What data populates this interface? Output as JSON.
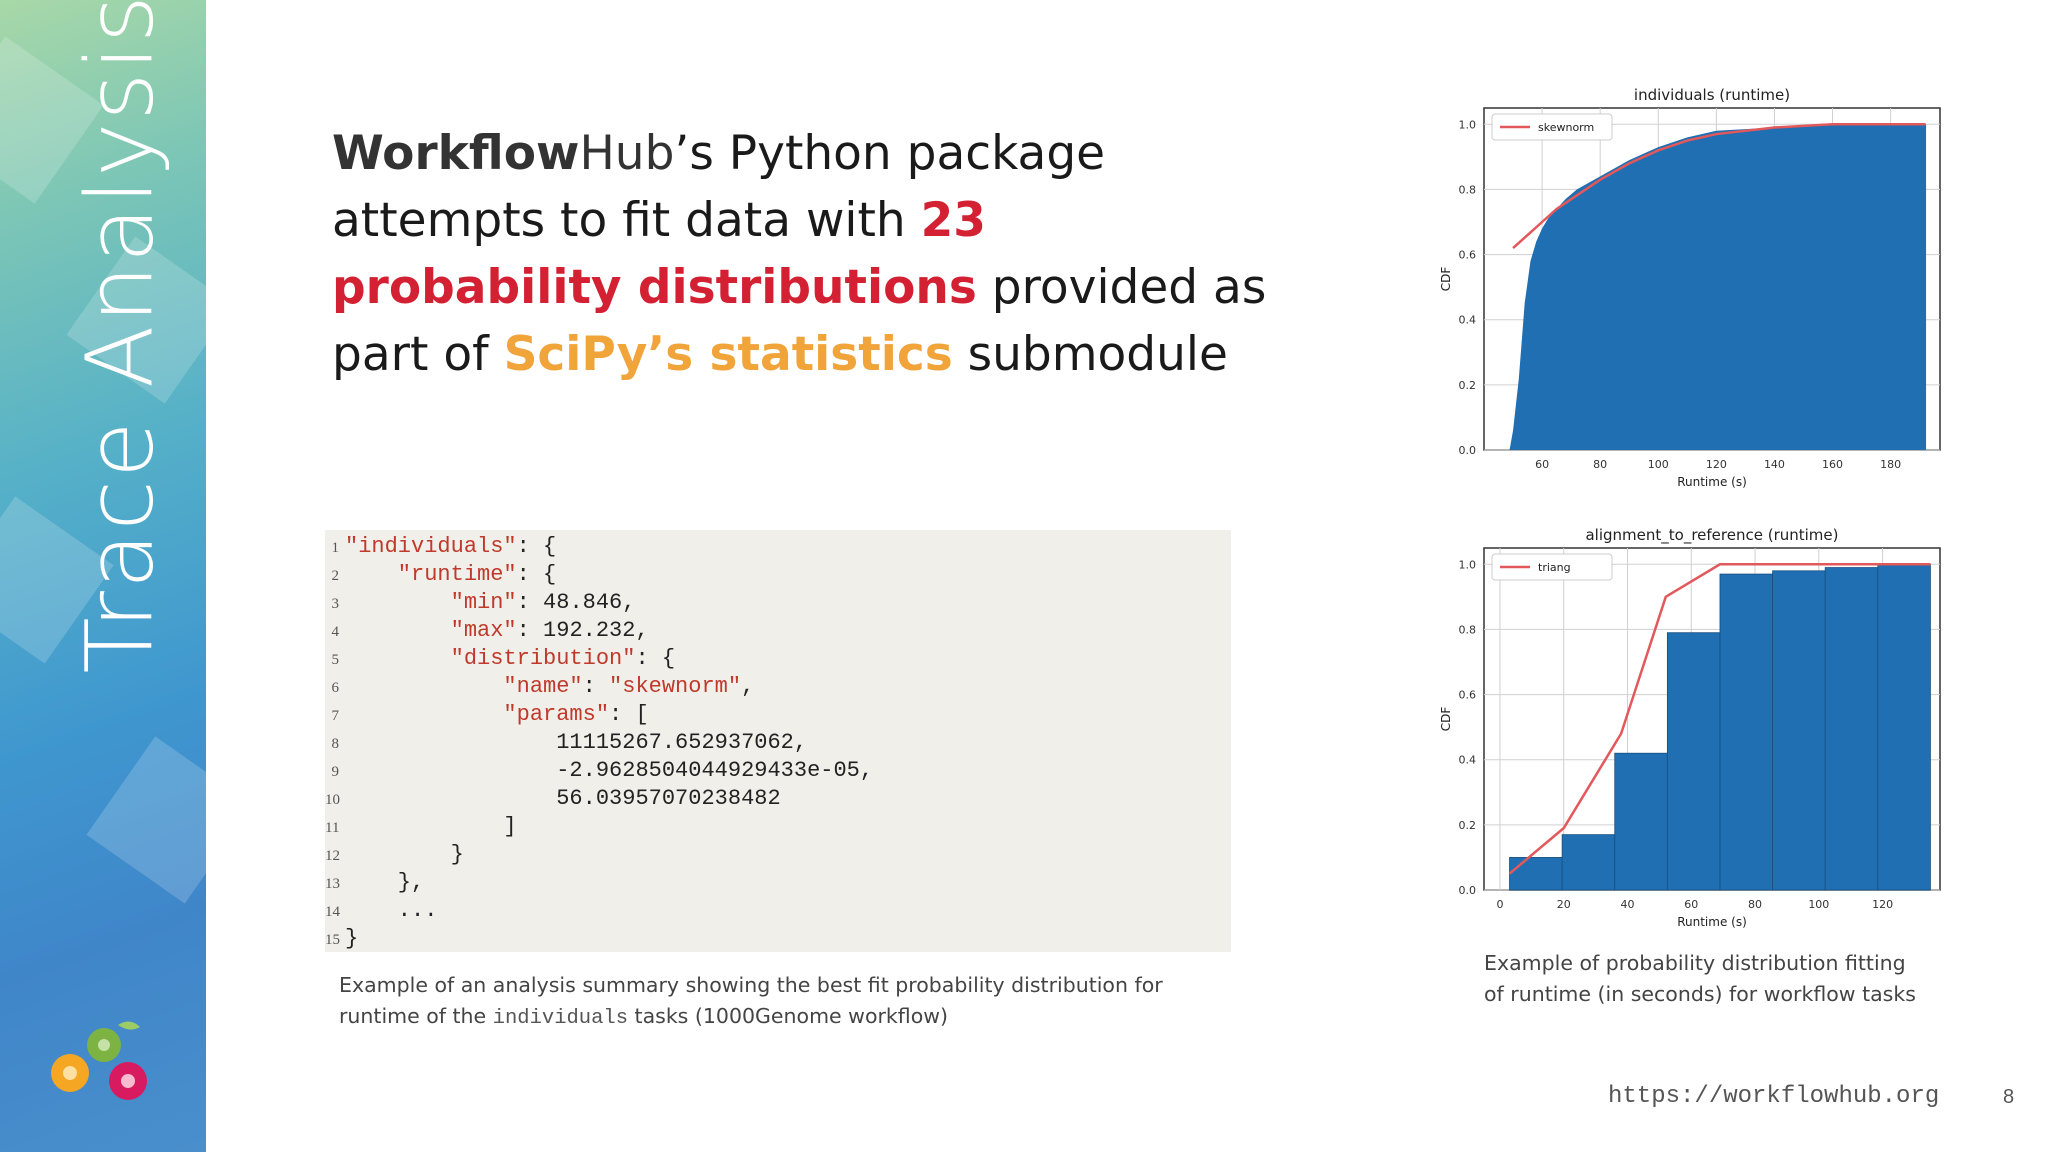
{
  "slide": {
    "side_title": "Trace Analysis",
    "headline": {
      "brand_bold": "Workflow",
      "brand_normal": "Hub",
      "part1": "’s Python package attempts to fit data with ",
      "highlight_red": "23 probability distributions",
      "part2": " provided as part of ",
      "highlight_orange": "SciPy’s statistics",
      "part3": " submodule"
    },
    "code_lines": [
      {
        "n": "1",
        "segs": [
          {
            "t": "\"individuals\"",
            "k": true
          },
          {
            "t": ": {",
            "k": false
          }
        ]
      },
      {
        "n": "2",
        "segs": [
          {
            "t": "    \"runtime\"",
            "k": true
          },
          {
            "t": ": {",
            "k": false
          }
        ]
      },
      {
        "n": "3",
        "segs": [
          {
            "t": "        \"min\"",
            "k": true
          },
          {
            "t": ": 48.846,",
            "k": false
          }
        ]
      },
      {
        "n": "4",
        "segs": [
          {
            "t": "        \"max\"",
            "k": true
          },
          {
            "t": ": 192.232,",
            "k": false
          }
        ]
      },
      {
        "n": "5",
        "segs": [
          {
            "t": "        \"distribution\"",
            "k": true
          },
          {
            "t": ": {",
            "k": false
          }
        ]
      },
      {
        "n": "6",
        "segs": [
          {
            "t": "            \"name\"",
            "k": true
          },
          {
            "t": ": ",
            "k": false
          },
          {
            "t": "\"skewnorm\"",
            "k": true
          },
          {
            "t": ",",
            "k": false
          }
        ]
      },
      {
        "n": "7",
        "segs": [
          {
            "t": "            \"params\"",
            "k": true
          },
          {
            "t": ": [",
            "k": false
          }
        ]
      },
      {
        "n": "8",
        "segs": [
          {
            "t": "                11115267.652937062,",
            "k": false
          }
        ]
      },
      {
        "n": "9",
        "segs": [
          {
            "t": "                -2.9628504044929433e-05,",
            "k": false
          }
        ]
      },
      {
        "n": "10",
        "segs": [
          {
            "t": "                56.03957070238482",
            "k": false
          }
        ]
      },
      {
        "n": "11",
        "segs": [
          {
            "t": "            ]",
            "k": false
          }
        ]
      },
      {
        "n": "12",
        "segs": [
          {
            "t": "        }",
            "k": false
          }
        ]
      },
      {
        "n": "13",
        "segs": [
          {
            "t": "    },",
            "k": false
          }
        ]
      },
      {
        "n": "14",
        "segs": [
          {
            "t": "    ...",
            "k": false
          }
        ]
      },
      {
        "n": "15",
        "segs": [
          {
            "t": "}",
            "k": false
          }
        ]
      }
    ],
    "caption_left": {
      "line1": "Example of an analysis summary showing the best fit probability distribution for",
      "prefix": "runtime of the ",
      "mono": "individuals",
      "suffix": " tasks (1000Genome workflow)"
    },
    "caption_right": {
      "line1": "Example of probability distribution fitting",
      "line2": "of runtime (in seconds) for workflow tasks"
    },
    "footer_url": "https://workflowhub.org",
    "page_number": "8",
    "colors": {
      "red": "#d32032",
      "orange": "#f0a43a",
      "bar": "#1f6fb2",
      "fit": "#e2585b"
    }
  },
  "chart_data": [
    {
      "type": "area",
      "title": "individuals (runtime)",
      "xlabel": "Runtime (s)",
      "ylabel": "CDF",
      "xlim": [
        40,
        197
      ],
      "ylim": [
        0,
        1.05
      ],
      "xticks": [
        60,
        80,
        100,
        120,
        140,
        160,
        180
      ],
      "yticks": [
        0.0,
        0.2,
        0.4,
        0.6,
        0.8,
        1.0
      ],
      "grid": true,
      "legend": "top-left",
      "series": [
        {
          "name": "",
          "x": [
            48.8,
            50,
            52,
            54,
            56,
            58,
            60,
            62,
            64,
            66,
            68,
            72,
            76,
            80,
            90,
            100,
            110,
            120,
            140,
            160,
            180,
            192.2
          ],
          "values": [
            0.0,
            0.06,
            0.22,
            0.45,
            0.58,
            0.64,
            0.68,
            0.71,
            0.73,
            0.75,
            0.77,
            0.8,
            0.82,
            0.84,
            0.89,
            0.93,
            0.96,
            0.98,
            0.99,
            1.0,
            1.0,
            1.0
          ]
        },
        {
          "name": "skewnorm",
          "x": [
            50,
            55,
            60,
            65,
            70,
            80,
            90,
            100,
            110,
            120,
            140,
            160,
            180,
            192
          ],
          "values": [
            0.62,
            0.66,
            0.7,
            0.74,
            0.77,
            0.83,
            0.88,
            0.92,
            0.95,
            0.97,
            0.99,
            1.0,
            1.0,
            1.0
          ]
        }
      ]
    },
    {
      "type": "bar",
      "title": "alignment_to_reference (runtime)",
      "xlabel": "Runtime (s)",
      "ylabel": "CDF",
      "xlim": [
        -5,
        138
      ],
      "ylim": [
        0,
        1.05
      ],
      "xticks": [
        0,
        20,
        40,
        60,
        80,
        100,
        120
      ],
      "yticks": [
        0.0,
        0.2,
        0.4,
        0.6,
        0.8,
        1.0
      ],
      "grid": true,
      "legend": "top-left",
      "series": [
        {
          "name": "",
          "bin_edges": [
            3,
            19.5,
            36,
            52.5,
            69,
            85.5,
            102,
            118.5,
            135
          ],
          "values": [
            0.1,
            0.17,
            0.42,
            0.79,
            0.97,
            0.98,
            0.99,
            1.0
          ]
        },
        {
          "name": "triang",
          "x": [
            3,
            20,
            38,
            52,
            69,
            100,
            135
          ],
          "values": [
            0.05,
            0.19,
            0.48,
            0.9,
            1.0,
            1.0,
            1.0
          ]
        }
      ]
    }
  ]
}
